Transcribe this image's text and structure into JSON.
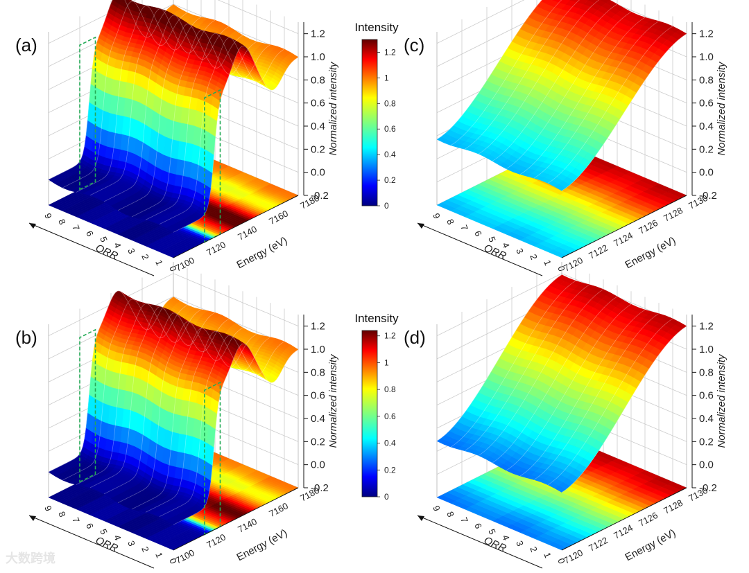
{
  "chart_data": [
    {
      "panel": "(a)",
      "type": "surface3d",
      "x_label": "Energy (eV)",
      "x_ticks": [
        "7100",
        "7120",
        "7140",
        "7160",
        "7180"
      ],
      "x_range": [
        7100,
        7180
      ],
      "y_label": "ORR",
      "y_ticks": [
        "0",
        "1",
        "2",
        "3",
        "4",
        "5",
        "6",
        "7",
        "8",
        "9"
      ],
      "y_range": [
        0,
        9
      ],
      "z_label": "Normalized intensity",
      "z_ticks": [
        "-0.2",
        "0.0",
        "0.2",
        "0.4",
        "0.6",
        "0.8",
        "1.0",
        "1.2"
      ],
      "z_range": [
        -0.2,
        1.3
      ],
      "surface": {
        "pre_edge": 0.02,
        "white_line": 1.28,
        "post_edge": 1.0,
        "edge_center": 7126
      },
      "projection": "filled contour map on the base plane",
      "highlight_box": "green dashed region spanning 7120–7130 eV",
      "colorbar": {
        "title": "Intensity",
        "ticks": [
          "0",
          "0.2",
          "0.4",
          "0.6",
          "0.8",
          "1",
          "1.2"
        ],
        "range": [
          0,
          1.3
        ]
      }
    },
    {
      "panel": "(b)",
      "type": "surface3d",
      "x_label": "Energy (eV)",
      "x_ticks": [
        "7100",
        "7120",
        "7140",
        "7160",
        "7180"
      ],
      "x_range": [
        7100,
        7180
      ],
      "y_label": "ORR",
      "y_ticks": [
        "0",
        "1",
        "2",
        "3",
        "4",
        "5",
        "6",
        "7",
        "8",
        "9"
      ],
      "y_range": [
        0,
        9
      ],
      "z_label": "Normalized intensity",
      "z_ticks": [
        "-0.2",
        "0.0",
        "0.2",
        "0.4",
        "0.6",
        "0.8",
        "1.0",
        "1.2"
      ],
      "z_range": [
        -0.2,
        1.3
      ],
      "surface": {
        "pre_edge": 0.02,
        "white_line": 1.24,
        "post_edge": 1.0,
        "edge_center": 7126
      },
      "projection": "filled contour map on the base plane",
      "highlight_box": "green dashed region spanning 7120–7130 eV",
      "colorbar": {
        "title": "Intensity",
        "ticks": [
          "0",
          "0.2",
          "0.4",
          "0.6",
          "0.8",
          "1",
          "1.2"
        ],
        "range": [
          0,
          1.24
        ]
      }
    },
    {
      "panel": "(c)",
      "type": "surface3d",
      "x_label": "Energy (eV)",
      "x_ticks": [
        "7120",
        "7122",
        "7124",
        "7126",
        "7128",
        "7130"
      ],
      "x_range": [
        7120,
        7130
      ],
      "y_label": "ORR",
      "y_ticks": [
        "0",
        "1",
        "2",
        "3",
        "4",
        "5",
        "6",
        "7",
        "8",
        "9"
      ],
      "y_range": [
        0,
        9
      ],
      "z_label": "Normalized intensity",
      "z_ticks": [
        "-0.2",
        "0.0",
        "0.2",
        "0.4",
        "0.6",
        "0.8",
        "1.0",
        "1.2"
      ],
      "z_range": [
        -0.2,
        1.3
      ],
      "surface": {
        "start": 0.38,
        "end": 1.2
      },
      "projection": "filled contour map on the base plane"
    },
    {
      "panel": "(d)",
      "type": "surface3d",
      "x_label": "Energy (eV)",
      "x_ticks": [
        "7120",
        "7122",
        "7124",
        "7126",
        "7128",
        "7130"
      ],
      "x_range": [
        7120,
        7130
      ],
      "y_label": "ORR",
      "y_ticks": [
        "0",
        "1",
        "2",
        "3",
        "4",
        "5",
        "6",
        "7",
        "8",
        "9"
      ],
      "y_range": [
        0,
        9
      ],
      "z_label": "Normalized intensity",
      "z_ticks": [
        "-0.2",
        "0.0",
        "0.2",
        "0.4",
        "0.6",
        "0.8",
        "1.0",
        "1.2"
      ],
      "z_range": [
        -0.2,
        1.3
      ],
      "surface": {
        "start": 0.3,
        "end": 1.2
      },
      "projection": "filled contour map on the base plane"
    }
  ],
  "watermark": "大数跨境",
  "colors": {
    "grid": "#cccccc",
    "axis": "#111111",
    "highlight": "#22aa55"
  }
}
